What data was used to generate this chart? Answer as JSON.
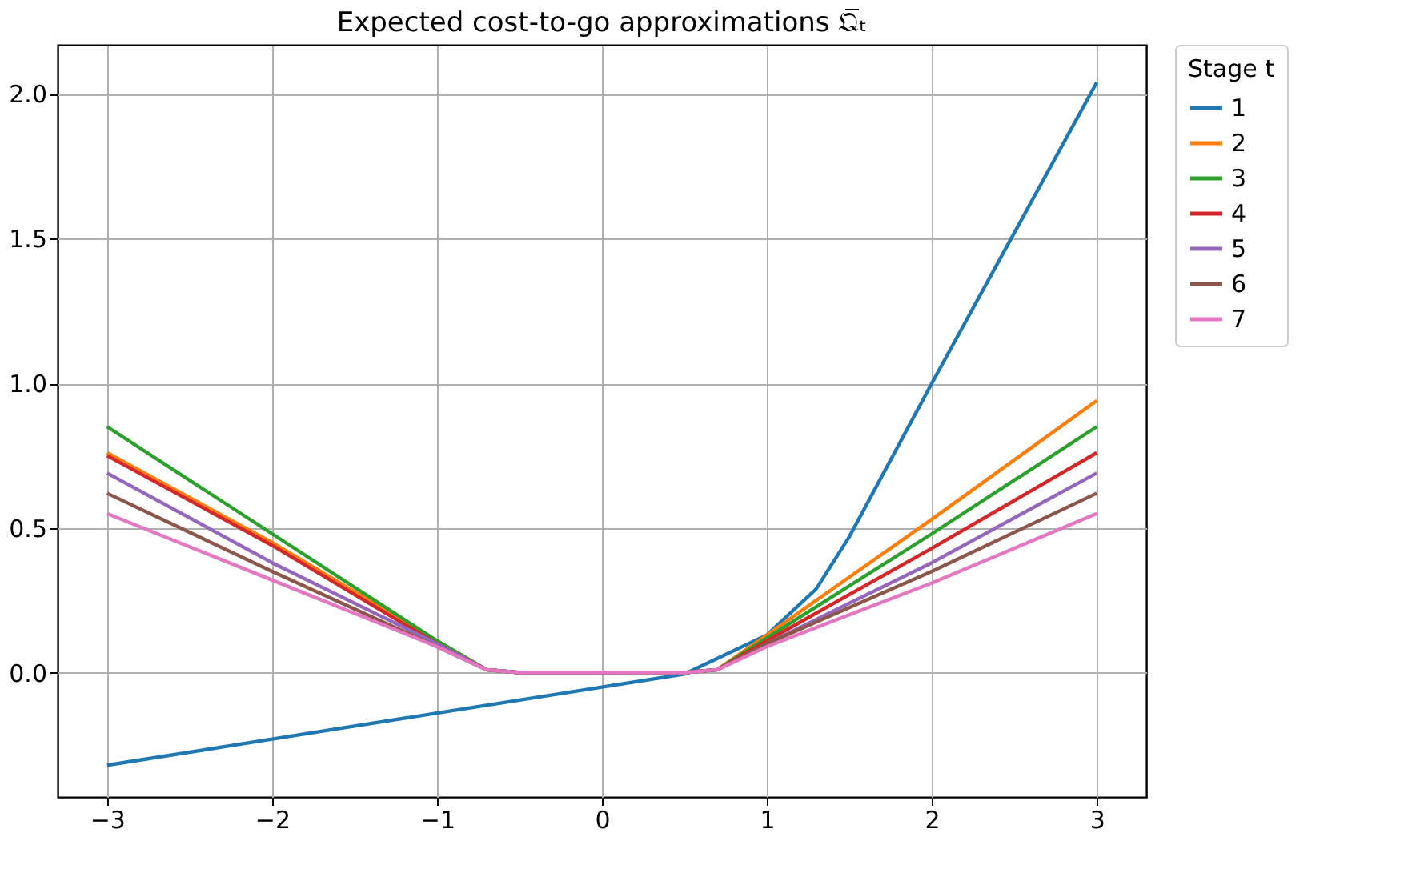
{
  "chart_data": {
    "type": "line",
    "title": "Expected cost-to-go approximations 𝔔̅ₜ",
    "legend_title": "Stage t",
    "legend": "right",
    "grid": true,
    "line_style": "solid",
    "xlim": [
      -3.3,
      3.3
    ],
    "ylim": [
      -0.43,
      2.17
    ],
    "xticks": [
      {
        "value": -3,
        "label": "−3"
      },
      {
        "value": -2,
        "label": "−2"
      },
      {
        "value": -1,
        "label": "−1"
      },
      0,
      1,
      2,
      3
    ],
    "yticks": [
      {
        "value": 0,
        "label": "0.0"
      },
      {
        "value": 0.5,
        "label": "0.5"
      },
      {
        "value": 1,
        "label": "1.0"
      },
      {
        "value": 1.5,
        "label": "1.5"
      },
      {
        "value": 2,
        "label": "2.0"
      }
    ],
    "series": [
      {
        "name": "1",
        "color": "#1f77b4",
        "x": [
          -3,
          -2,
          -1,
          0,
          0.5,
          1,
          1.3,
          1.5,
          2,
          3
        ],
        "values": [
          -0.32,
          -0.23,
          -0.14,
          -0.05,
          -0.005,
          0.13,
          0.29,
          0.47,
          1.0,
          2.04
        ]
      },
      {
        "name": "2",
        "color": "#ff7f0e",
        "x": [
          -3,
          -2,
          -1,
          -0.7,
          -0.5,
          0,
          0.5,
          0.7,
          1,
          2,
          3
        ],
        "values": [
          0.76,
          0.45,
          0.11,
          0.01,
          0,
          0,
          0,
          0.01,
          0.13,
          0.53,
          0.94
        ]
      },
      {
        "name": "3",
        "color": "#2ca02c",
        "x": [
          -3,
          -2,
          -1,
          -0.7,
          -0.5,
          0,
          0.5,
          0.7,
          1,
          2,
          3
        ],
        "values": [
          0.85,
          0.48,
          0.11,
          0.01,
          0,
          0,
          0,
          0.01,
          0.12,
          0.48,
          0.85
        ]
      },
      {
        "name": "4",
        "color": "#d62728",
        "x": [
          -3,
          -2,
          -1,
          -0.7,
          -0.5,
          0,
          0.5,
          0.7,
          1,
          2,
          3
        ],
        "values": [
          0.75,
          0.44,
          0.1,
          0.01,
          0,
          0,
          0,
          0.01,
          0.11,
          0.43,
          0.76
        ]
      },
      {
        "name": "5",
        "color": "#9467bd",
        "x": [
          -3,
          -2,
          -1,
          -0.7,
          -0.5,
          0,
          0.5,
          0.7,
          1,
          2,
          3
        ],
        "values": [
          0.69,
          0.38,
          0.1,
          0.01,
          0,
          0,
          0,
          0.01,
          0.1,
          0.38,
          0.69
        ]
      },
      {
        "name": "6",
        "color": "#8c564b",
        "x": [
          -3,
          -2,
          -1,
          -0.7,
          -0.5,
          0,
          0.5,
          0.7,
          1,
          2,
          3
        ],
        "values": [
          0.62,
          0.35,
          0.09,
          0.01,
          0,
          0,
          0,
          0.01,
          0.1,
          0.35,
          0.62
        ]
      },
      {
        "name": "7",
        "color": "#e377c2",
        "x": [
          -3,
          -2,
          -1,
          -0.7,
          -0.5,
          0,
          0.5,
          0.7,
          1,
          2,
          3
        ],
        "values": [
          0.55,
          0.32,
          0.09,
          0.01,
          0,
          0,
          0,
          0.01,
          0.09,
          0.31,
          0.55
        ]
      }
    ]
  }
}
